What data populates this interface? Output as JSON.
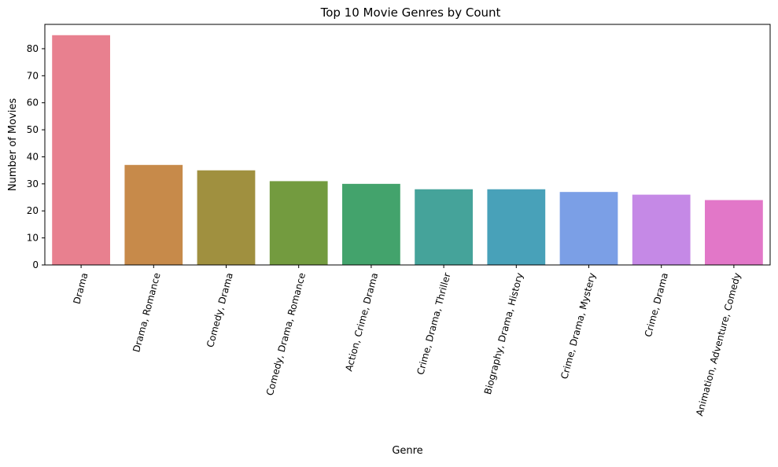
{
  "chart_data": {
    "type": "bar",
    "title": "Top 10 Movie Genres by Count",
    "xlabel": "Genre",
    "ylabel": "Number of Movies",
    "ylim": [
      0,
      89
    ],
    "yticks": [
      0,
      10,
      20,
      30,
      40,
      50,
      60,
      70,
      80
    ],
    "categories": [
      "Drama",
      "Drama, Romance",
      "Comedy, Drama",
      "Comedy, Drama, Romance",
      "Action, Crime, Drama",
      "Crime, Drama, Thriller",
      "Biography, Drama, History",
      "Crime, Drama, Mystery",
      "Crime, Drama",
      "Animation, Adventure, Comedy"
    ],
    "values": [
      85,
      37,
      35,
      31,
      30,
      28,
      28,
      27,
      26,
      24
    ],
    "colors": [
      "#e8808f",
      "#c78a4a",
      "#a0903f",
      "#739b3f",
      "#43a36c",
      "#45a39a",
      "#48a1b9",
      "#7b9fe6",
      "#c589e6",
      "#e277c8"
    ],
    "grid": false,
    "legend": "none"
  }
}
